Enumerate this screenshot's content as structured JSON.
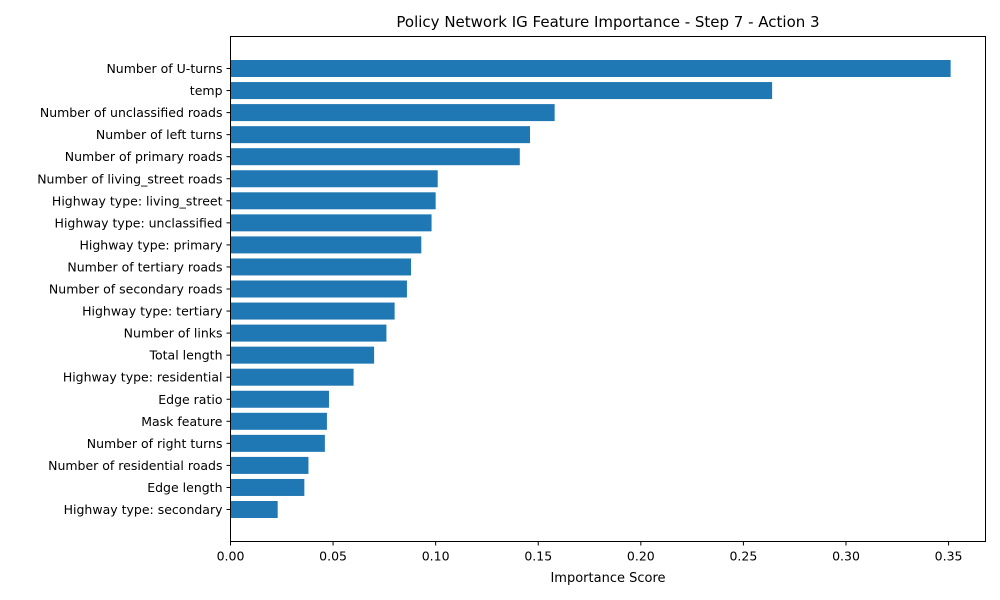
{
  "chart_data": {
    "type": "bar",
    "orientation": "horizontal",
    "title": "Policy Network IG Feature Importance - Step 7 - Action 3",
    "xlabel": "Importance Score",
    "ylabel": "",
    "xlim": [
      0,
      0.368
    ],
    "xticks": [
      "0.00",
      "0.05",
      "0.10",
      "0.15",
      "0.20",
      "0.25",
      "0.30",
      "0.35"
    ],
    "bar_color": "#1f77b4",
    "grid": false,
    "categories": [
      "Number of U-turns",
      "temp",
      "Number of unclassified roads",
      "Number of left turns",
      "Number of primary roads",
      "Number of living_street roads",
      "Highway type: living_street",
      "Highway type: unclassified",
      "Highway type: primary",
      "Number of tertiary roads",
      "Number of secondary roads",
      "Highway type: tertiary",
      "Number of links",
      "Total length",
      "Highway type: residential",
      "Edge ratio",
      "Mask feature",
      "Number of right turns",
      "Number of residential roads",
      "Edge length",
      "Highway type: secondary"
    ],
    "values": [
      0.351,
      0.264,
      0.158,
      0.146,
      0.141,
      0.101,
      0.1,
      0.098,
      0.093,
      0.088,
      0.086,
      0.08,
      0.076,
      0.07,
      0.06,
      0.048,
      0.047,
      0.046,
      0.038,
      0.036,
      0.023
    ]
  }
}
